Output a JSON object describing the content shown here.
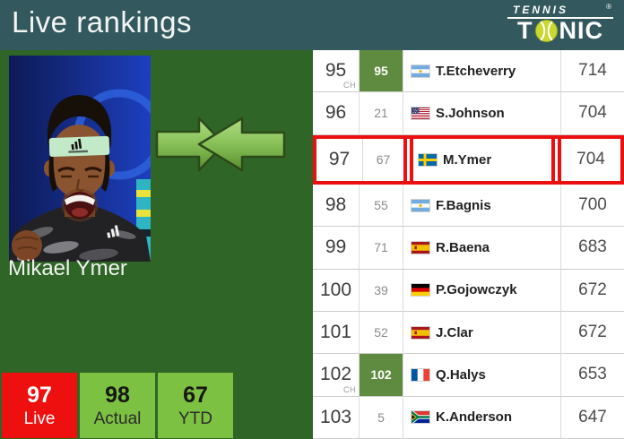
{
  "colors": {
    "header_teal": "#33595E",
    "panel_green": "#2F6526",
    "move_green_box": "#5E8B40",
    "highlight_red": "#EC0F0F",
    "summary_live_red": "#EE0F0F",
    "summary_green": "#7CC142",
    "arrow_green_light": "#AEDC85",
    "arrow_green_dark": "#588F2F",
    "ball_yellow_green": "#C9D733"
  },
  "header": {
    "title": "Live rankings",
    "logo": {
      "top": "TENNIS",
      "registered": "®",
      "brand_left": "T",
      "brand_right": "NIC"
    }
  },
  "player": {
    "name": "Mikael Ymer"
  },
  "table": {
    "rows": [
      {
        "rank": "95",
        "ch": "CH",
        "change": "95",
        "change_highlight": true,
        "flag": "argentina",
        "name": "T.Etcheverry",
        "points": "714",
        "highlight": false
      },
      {
        "rank": "96",
        "change": "21",
        "flag": "usa",
        "name": "S.Johnson",
        "points": "704",
        "highlight": false
      },
      {
        "rank": "97",
        "change": "67",
        "flag": "sweden",
        "name": "M.Ymer",
        "points": "704",
        "highlight": true
      },
      {
        "rank": "98",
        "change": "55",
        "flag": "argentina",
        "name": "F.Bagnis",
        "points": "700",
        "highlight": false
      },
      {
        "rank": "99",
        "change": "71",
        "flag": "spain",
        "name": "R.Baena",
        "points": "683",
        "highlight": false
      },
      {
        "rank": "100",
        "change": "39",
        "flag": "germany",
        "name": "P.Gojowczyk",
        "points": "672",
        "highlight": false
      },
      {
        "rank": "101",
        "change": "52",
        "flag": "spain",
        "name": "J.Clar",
        "points": "672",
        "highlight": false
      },
      {
        "rank": "102",
        "ch": "CH",
        "change": "102",
        "change_highlight": true,
        "flag": "france",
        "name": "Q.Halys",
        "points": "653",
        "highlight": false
      },
      {
        "rank": "103",
        "change": "5",
        "flag": "south-africa",
        "name": "K.Anderson",
        "points": "647",
        "highlight": false
      }
    ]
  },
  "summary": [
    {
      "value": "97",
      "label": "Live",
      "style": "live"
    },
    {
      "value": "98",
      "label": "Actual",
      "style": "actual"
    },
    {
      "value": "67",
      "label": "YTD",
      "style": "ytd"
    }
  ]
}
